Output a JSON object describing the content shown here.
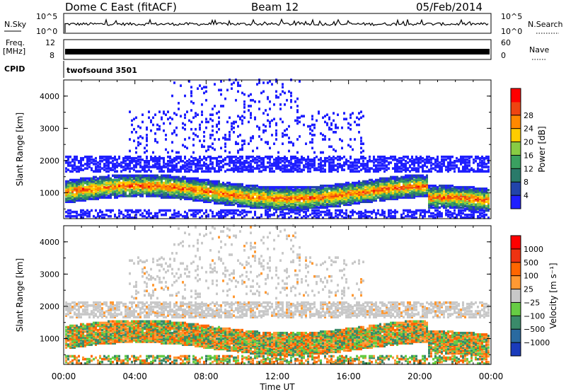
{
  "header": {
    "station": "Dome C East (fitACF)",
    "beam": "Beam 12",
    "date": "05/Feb/2014"
  },
  "top_panels": {
    "nsky_label": "N.Sky",
    "nsky_ticks": [
      "10^5",
      "10^0"
    ],
    "nsearch_label": "N.Search",
    "nsearch_ticks": [
      "10^5",
      "10^0"
    ],
    "freq_label": "Freq.",
    "freq_unit": "[MHz]",
    "freq_ticks": [
      "12",
      "8"
    ],
    "nave_label": "Nave",
    "nave_ticks": [
      "60",
      "0"
    ],
    "cpid_label": "CPID",
    "cpid_value": "twofsound 3501"
  },
  "chart_data": [
    {
      "type": "heatmap",
      "name": "power",
      "ylabel": "Slant Range [km]",
      "ylim": [
        200,
        4500
      ],
      "yticks": [
        1000,
        2000,
        3000,
        4000
      ],
      "xlim": [
        0,
        24
      ],
      "colorbar": {
        "label": "Power [dB]",
        "ticks": [
          "4",
          "8",
          "12",
          "16",
          "20",
          "24",
          "28"
        ],
        "colors": [
          "#1f1fff",
          "#2244aa",
          "#2a7a6a",
          "#3aa060",
          "#88cc44",
          "#ffcc00",
          "#ff8800",
          "#ee4411",
          "#ff0000"
        ]
      }
    },
    {
      "type": "heatmap",
      "name": "velocity",
      "ylabel": "Slant Range [km]",
      "ylim": [
        200,
        4500
      ],
      "yticks": [
        1000,
        2000,
        3000,
        4000
      ],
      "xlim": [
        0,
        24
      ],
      "xlabel": "Time UT",
      "xticks": [
        "00:00",
        "04:00",
        "08:00",
        "12:00",
        "16:00",
        "20:00",
        "00:00"
      ],
      "colorbar": {
        "label": "Velocity [m s⁻¹]",
        "ticks": [
          "1000",
          "500",
          "100",
          "25",
          "−25",
          "−100",
          "−500",
          "−1000"
        ],
        "colors": [
          "#1a3bbb",
          "#2a6aa0",
          "#3a8a6a",
          "#66cc44",
          "#c8c8c8",
          "#ff9933",
          "#ff6600",
          "#ee3311",
          "#ff0000"
        ]
      }
    }
  ]
}
